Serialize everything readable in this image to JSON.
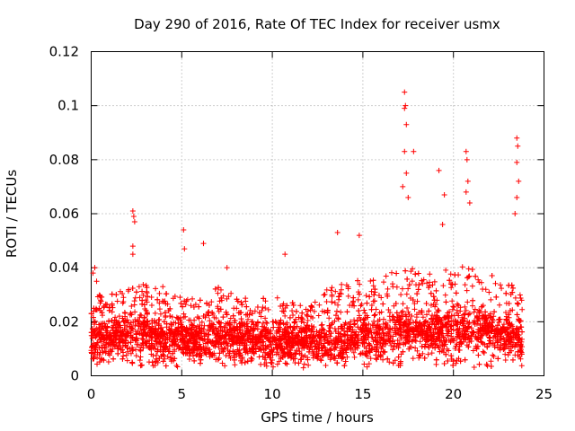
{
  "chart_data": {
    "type": "scatter",
    "title": "Day 290 of 2016, Rate Of TEC Index for receiver usmx",
    "xlabel": "GPS time / hours",
    "ylabel": "ROTI / TECUs",
    "xlim": [
      0,
      25
    ],
    "ylim": [
      0,
      0.12
    ],
    "x_ticks": [
      "0",
      "5",
      "10",
      "15",
      "20",
      "25"
    ],
    "y_ticks": [
      "0",
      "0.02",
      "0.04",
      "0.06",
      "0.08",
      "0.1",
      "0.12"
    ],
    "grid": true,
    "marker": "+",
    "series_color": "#ff0000",
    "time_range_hours": [
      0,
      23.8
    ],
    "baseline_profile": {
      "hours": [
        0,
        1,
        2,
        3,
        4,
        5,
        6,
        7,
        8,
        9,
        10,
        11,
        12,
        13,
        14,
        15,
        16,
        17,
        18,
        19,
        20,
        21,
        22,
        23,
        23.8
      ],
      "typical_roti": [
        0.013,
        0.014,
        0.015,
        0.015,
        0.014,
        0.014,
        0.013,
        0.014,
        0.014,
        0.013,
        0.013,
        0.012,
        0.012,
        0.012,
        0.013,
        0.014,
        0.015,
        0.016,
        0.016,
        0.016,
        0.017,
        0.017,
        0.016,
        0.014,
        0.013
      ],
      "upper_envelope": [
        0.03,
        0.03,
        0.032,
        0.034,
        0.033,
        0.03,
        0.028,
        0.033,
        0.03,
        0.028,
        0.03,
        0.028,
        0.027,
        0.032,
        0.035,
        0.036,
        0.036,
        0.04,
        0.04,
        0.038,
        0.042,
        0.04,
        0.038,
        0.035,
        0.03
      ]
    },
    "notable_points": [
      {
        "x": 0.1,
        "y": 0.038
      },
      {
        "x": 0.2,
        "y": 0.04
      },
      {
        "x": 0.3,
        "y": 0.035
      },
      {
        "x": 2.3,
        "y": 0.061
      },
      {
        "x": 2.35,
        "y": 0.059
      },
      {
        "x": 2.4,
        "y": 0.057
      },
      {
        "x": 2.3,
        "y": 0.048
      },
      {
        "x": 2.3,
        "y": 0.045
      },
      {
        "x": 5.1,
        "y": 0.054
      },
      {
        "x": 5.15,
        "y": 0.047
      },
      {
        "x": 6.2,
        "y": 0.049
      },
      {
        "x": 7.5,
        "y": 0.04
      },
      {
        "x": 10.7,
        "y": 0.045
      },
      {
        "x": 13.6,
        "y": 0.053
      },
      {
        "x": 14.8,
        "y": 0.052
      },
      {
        "x": 17.3,
        "y": 0.105
      },
      {
        "x": 17.35,
        "y": 0.1
      },
      {
        "x": 17.3,
        "y": 0.099
      },
      {
        "x": 17.4,
        "y": 0.093
      },
      {
        "x": 17.3,
        "y": 0.083
      },
      {
        "x": 17.8,
        "y": 0.083
      },
      {
        "x": 17.4,
        "y": 0.075
      },
      {
        "x": 17.2,
        "y": 0.07
      },
      {
        "x": 17.5,
        "y": 0.066
      },
      {
        "x": 19.2,
        "y": 0.076
      },
      {
        "x": 19.5,
        "y": 0.067
      },
      {
        "x": 19.4,
        "y": 0.056
      },
      {
        "x": 20.7,
        "y": 0.083
      },
      {
        "x": 20.75,
        "y": 0.08
      },
      {
        "x": 20.8,
        "y": 0.072
      },
      {
        "x": 20.7,
        "y": 0.068
      },
      {
        "x": 20.9,
        "y": 0.064
      },
      {
        "x": 23.5,
        "y": 0.088
      },
      {
        "x": 23.55,
        "y": 0.085
      },
      {
        "x": 23.5,
        "y": 0.079
      },
      {
        "x": 23.6,
        "y": 0.072
      },
      {
        "x": 23.5,
        "y": 0.066
      },
      {
        "x": 23.4,
        "y": 0.06
      }
    ]
  }
}
